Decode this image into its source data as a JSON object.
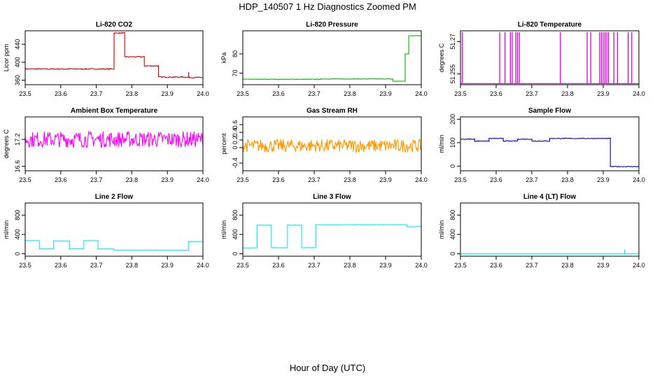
{
  "figure": {
    "title": "HDP_140507  1 Hz Diagnostics Zoomed PM",
    "xlabel": "Hour of Day (UTC)"
  },
  "chart_data": [
    {
      "type": "line",
      "title": "Li-820 CO2",
      "ylabel": "Licor ppm",
      "color": "#dd0000",
      "xlim": [
        23.5,
        24.0
      ],
      "ylim": [
        350,
        470
      ],
      "xticks": [
        "23.5",
        "23.6",
        "23.7",
        "23.8",
        "23.9",
        "24.0"
      ],
      "yticks": [
        360,
        400,
        440
      ],
      "segments": [
        [
          23.5,
          23.75,
          385
        ],
        [
          23.75,
          23.78,
          465
        ],
        [
          23.78,
          23.835,
          412
        ],
        [
          23.835,
          23.875,
          392
        ],
        [
          23.875,
          23.96,
          367
        ],
        [
          23.96,
          24.0,
          366
        ]
      ],
      "spikes": [
        [
          23.96,
          378
        ]
      ],
      "noise": 1.2
    },
    {
      "type": "line",
      "title": "Li-820 Pressure",
      "ylabel": "kPa",
      "color": "#00bb00",
      "xlim": [
        23.5,
        24.0
      ],
      "ylim": [
        64,
        92
      ],
      "xticks": [
        "23.5",
        "23.6",
        "23.7",
        "23.8",
        "23.9",
        "24.0"
      ],
      "yticks": [
        70,
        80
      ],
      "segments": [
        [
          23.5,
          23.72,
          66.8
        ],
        [
          23.72,
          23.92,
          67.0
        ],
        [
          23.92,
          23.955,
          65.8
        ],
        [
          23.955,
          23.965,
          80
        ],
        [
          23.965,
          24.0,
          89.5
        ]
      ],
      "noise": 0.15
    },
    {
      "type": "line",
      "title": "Li-820 Temperature",
      "ylabel": "degrees C",
      "color": "#dd00dd",
      "xlim": [
        23.5,
        24.0
      ],
      "ylim": [
        51.25,
        51.275
      ],
      "xticks": [
        "23.5",
        "23.6",
        "23.7",
        "23.8",
        "23.9",
        "24.0"
      ],
      "yticks": [
        51.255,
        51.27
      ],
      "segments": [
        [
          23.5,
          24.0,
          51.2505
        ]
      ],
      "spikes_to_top": [
        23.505,
        23.61,
        23.625,
        23.64,
        23.645,
        23.655,
        23.66,
        23.665,
        23.78,
        23.855,
        23.865,
        23.89,
        23.895,
        23.9,
        23.905,
        23.91,
        23.915,
        23.93,
        23.94,
        23.97,
        23.98
      ],
      "noise": 0
    },
    {
      "type": "line",
      "title": "Ambient Box Temperature",
      "ylabel": "degrees C",
      "color": "#ff00ff",
      "xlim": [
        23.5,
        24.0
      ],
      "ylim": [
        16.5,
        17.7
      ],
      "xticks": [
        "23.5",
        "23.6",
        "23.7",
        "23.8",
        "23.9",
        "24.0"
      ],
      "yticks": [
        16.6,
        17.2
      ],
      "segments": [
        [
          23.5,
          24.0,
          17.2
        ]
      ],
      "noise": 0.18
    },
    {
      "type": "line",
      "title": "Gas Stream RH",
      "ylabel": "percent",
      "color": "#ff9900",
      "xlim": [
        23.5,
        24.0
      ],
      "ylim": [
        -0.6,
        0.8
      ],
      "xticks": [
        "23.5",
        "23.6",
        "23.7",
        "23.8",
        "23.9",
        "24.0"
      ],
      "yticks": [
        -0.4,
        0.0,
        0.2,
        0.4,
        0.6
      ],
      "segments": [
        [
          23.5,
          24.0,
          0.05
        ]
      ],
      "noise": 0.17
    },
    {
      "type": "line",
      "title": "Sample Flow",
      "ylabel": "ml/min",
      "color": "#0000cc",
      "xlim": [
        23.5,
        24.0
      ],
      "ylim": [
        -20,
        210
      ],
      "xticks": [
        "23.5",
        "23.6",
        "23.7",
        "23.8",
        "23.9",
        "24.0"
      ],
      "yticks": [
        0,
        100,
        200
      ],
      "segments": [
        [
          23.5,
          23.54,
          115
        ],
        [
          23.54,
          23.58,
          107
        ],
        [
          23.58,
          23.62,
          118
        ],
        [
          23.62,
          23.66,
          107
        ],
        [
          23.66,
          23.7,
          115
        ],
        [
          23.7,
          23.75,
          107
        ],
        [
          23.75,
          23.92,
          118
        ],
        [
          23.92,
          24.0,
          -2
        ]
      ],
      "noise": 1.5
    },
    {
      "type": "line",
      "title": "Line 2 Flow",
      "ylabel": "ml/min",
      "color": "#00eeff",
      "xlim": [
        23.5,
        24.0
      ],
      "ylim": [
        -50,
        1050
      ],
      "xticks": [
        "23.5",
        "23.6",
        "23.7",
        "23.8",
        "23.9",
        "24.0"
      ],
      "yticks": [
        0,
        400,
        800
      ],
      "segments": [
        [
          23.5,
          23.54,
          270
        ],
        [
          23.54,
          23.58,
          100
        ],
        [
          23.58,
          23.625,
          265
        ],
        [
          23.625,
          23.665,
          100
        ],
        [
          23.665,
          23.705,
          270
        ],
        [
          23.705,
          23.75,
          100
        ],
        [
          23.75,
          23.96,
          70
        ],
        [
          23.96,
          24.0,
          250
        ]
      ],
      "noise": 4
    },
    {
      "type": "line",
      "title": "Line 3 Flow",
      "ylabel": "ml/min",
      "color": "#00eeff",
      "xlim": [
        23.5,
        24.0
      ],
      "ylim": [
        -50,
        1050
      ],
      "xticks": [
        "23.5",
        "23.6",
        "23.7",
        "23.8",
        "23.9",
        "24.0"
      ],
      "yticks": [
        0,
        400,
        800
      ],
      "segments": [
        [
          23.5,
          23.54,
          120
        ],
        [
          23.54,
          23.58,
          590
        ],
        [
          23.58,
          23.625,
          125
        ],
        [
          23.625,
          23.665,
          590
        ],
        [
          23.665,
          23.705,
          125
        ],
        [
          23.705,
          23.96,
          600
        ],
        [
          23.96,
          24.0,
          560
        ]
      ],
      "noise": 5
    },
    {
      "type": "line",
      "title": "Line 4 (LT) Flow",
      "ylabel": "ml/min",
      "color": "#00eeff",
      "xlim": [
        23.5,
        24.0
      ],
      "ylim": [
        -50,
        1050
      ],
      "xticks": [
        "23.5",
        "23.6",
        "23.7",
        "23.8",
        "23.9",
        "24.0"
      ],
      "yticks": [
        0,
        400,
        800
      ],
      "segments": [
        [
          23.5,
          24.0,
          0
        ]
      ],
      "spikes": [
        [
          23.96,
          90
        ]
      ],
      "noise": 1
    }
  ]
}
